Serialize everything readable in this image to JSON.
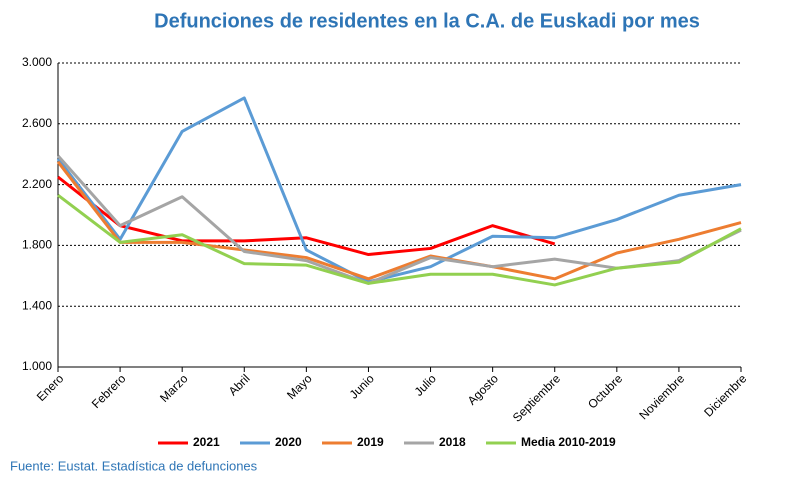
{
  "chart_data": {
    "type": "line",
    "title": "Defunciones de residentes en la C.A. de Euskadi por mes",
    "source": "Fuente: Eustat. Estadística de defunciones",
    "categories": [
      "Enero",
      "Febrero",
      "Marzo",
      "Abril",
      "Mayo",
      "Junio",
      "Julio",
      "Agosto",
      "Septiembre",
      "Octubre",
      "Noviembre",
      "Diciembre"
    ],
    "series": [
      {
        "name": "2021",
        "color": "#ff0000",
        "values": [
          2250,
          1930,
          1830,
          1830,
          1850,
          1740,
          1780,
          1930,
          1810,
          null,
          null,
          null
        ]
      },
      {
        "name": "2020",
        "color": "#5b9bd5",
        "values": [
          2370,
          1840,
          2550,
          2770,
          1770,
          1560,
          1660,
          1860,
          1850,
          1970,
          2130,
          2200
        ]
      },
      {
        "name": "2019",
        "color": "#ed7d31",
        "values": [
          2350,
          1820,
          1820,
          1770,
          1720,
          1580,
          1730,
          1660,
          1580,
          1750,
          1840,
          1950
        ]
      },
      {
        "name": "2018",
        "color": "#a5a5a5",
        "values": [
          2390,
          1930,
          2120,
          1760,
          1700,
          1550,
          1720,
          1660,
          1710,
          1650,
          1700,
          1900
        ]
      },
      {
        "name": "Media 2010-2019",
        "color": "#92d050",
        "values": [
          2130,
          1820,
          1870,
          1680,
          1670,
          1550,
          1610,
          1610,
          1540,
          1650,
          1690,
          1910
        ]
      }
    ],
    "ylim": [
      1000,
      3000
    ],
    "yticks": [
      {
        "value": 1000,
        "label": "1.000"
      },
      {
        "value": 1400,
        "label": "1.400"
      },
      {
        "value": 1800,
        "label": "1.800"
      },
      {
        "value": 2200,
        "label": "2.200"
      },
      {
        "value": 2600,
        "label": "2.600"
      },
      {
        "value": 3000,
        "label": "3.000"
      }
    ],
    "grid": true,
    "legend": "bottom"
  }
}
